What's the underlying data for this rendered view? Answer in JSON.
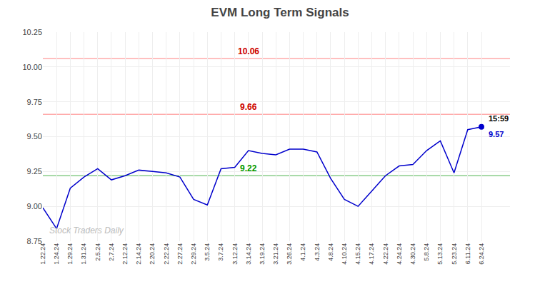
{
  "chart_data": {
    "type": "line",
    "title": "EVM Long Term Signals",
    "categories": [
      "1.22.24",
      "1.24.24",
      "1.29.24",
      "1.31.24",
      "2.5.24",
      "2.7.24",
      "2.12.24",
      "2.14.24",
      "2.20.24",
      "2.22.24",
      "2.27.24",
      "2.29.24",
      "3.5.24",
      "3.7.24",
      "3.12.24",
      "3.14.24",
      "3.19.24",
      "3.21.24",
      "3.26.24",
      "4.1.24",
      "4.3.24",
      "4.8.24",
      "4.10.24",
      "4.15.24",
      "4.17.24",
      "4.22.24",
      "4.24.24",
      "4.30.24",
      "5.8.24",
      "5.13.24",
      "5.23.24",
      "6.11.24",
      "6.24.24"
    ],
    "values": [
      8.99,
      8.84,
      9.13,
      9.21,
      9.27,
      9.19,
      9.22,
      9.26,
      9.25,
      9.24,
      9.21,
      9.05,
      9.01,
      9.27,
      9.28,
      9.4,
      9.38,
      9.37,
      9.41,
      9.41,
      9.39,
      9.2,
      9.05,
      9.0,
      9.11,
      9.22,
      9.29,
      9.3,
      9.4,
      9.47,
      9.24,
      9.55,
      9.57
    ],
    "color": "#0000cc",
    "ylim": [
      8.75,
      10.25
    ],
    "yticks": [
      8.75,
      {
        "value": 9.0,
        "label": "9.00"
      },
      9.25,
      {
        "value": 9.5,
        "label": "9.50"
      },
      9.75,
      {
        "value": 10.0,
        "label": "10.00"
      },
      10.25
    ],
    "grid": true,
    "hlines": [
      {
        "value": 10.06,
        "color": "#ffaaaa",
        "label_color": "#cc0000",
        "label_at": "3.14.24"
      },
      {
        "value": 9.66,
        "color": "#ffaaaa",
        "label_color": "#cc0000",
        "label_at": "3.14.24"
      },
      {
        "value": 9.22,
        "color": "#88cc88",
        "label_color": "#009900",
        "label_at": "3.14.24"
      }
    ],
    "last_point": {
      "label": "15:59",
      "label_color": "#000000",
      "value": 9.57,
      "color": "#0000cc"
    },
    "watermark": {
      "text": "Stock Traders Daily",
      "color": "#bbbbbb"
    }
  }
}
